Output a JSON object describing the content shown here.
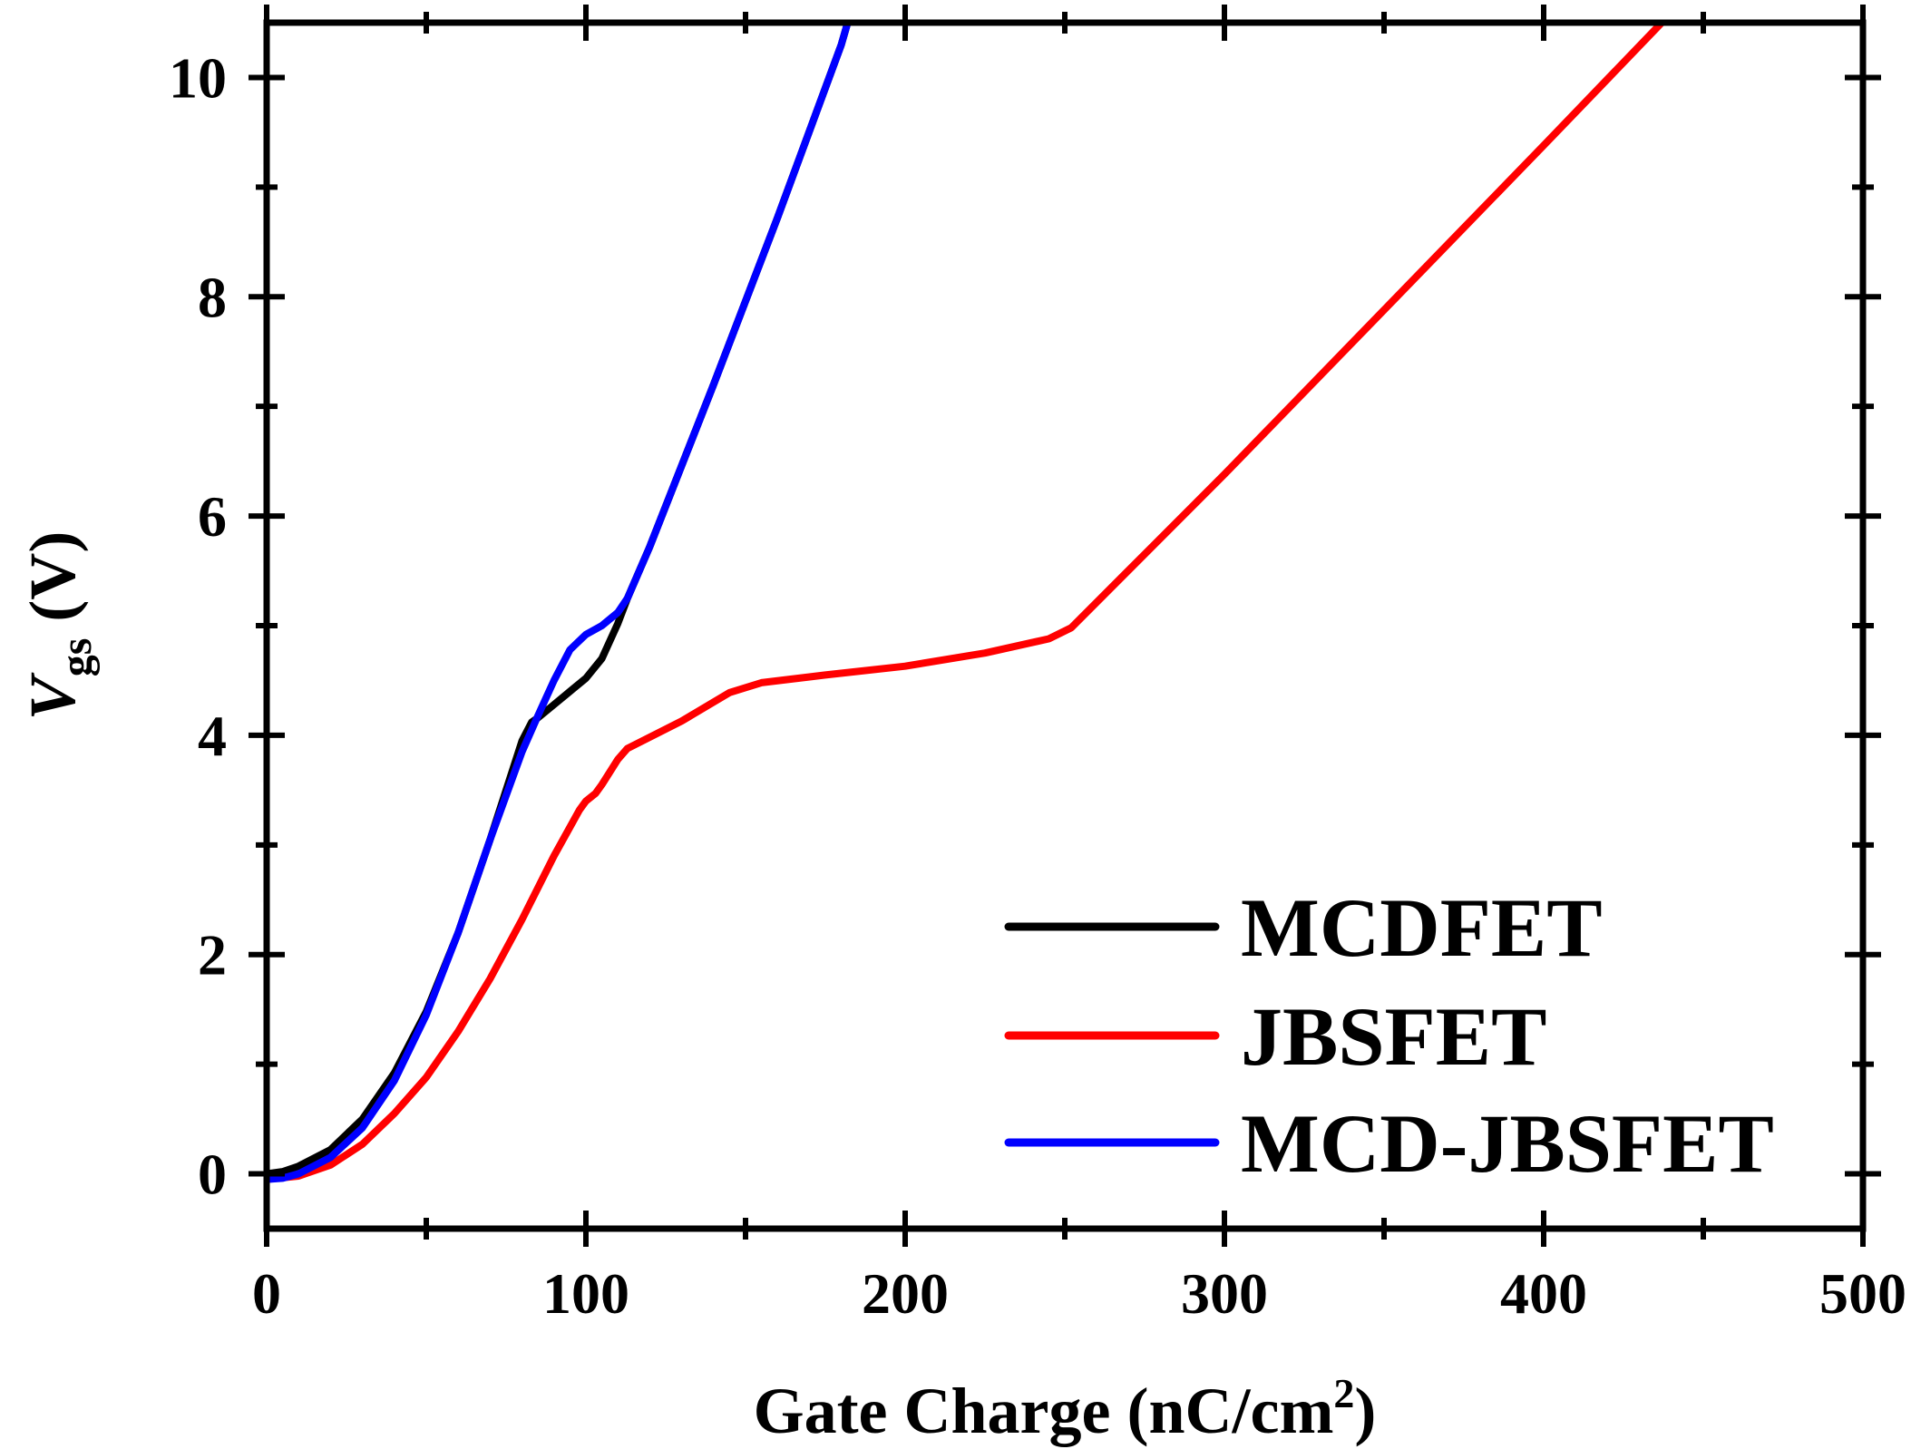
{
  "chart_data": {
    "type": "line",
    "title": "",
    "xlabel": "Gate Charge (nC/cm",
    "xlabel_sup": "2",
    "xlabel_end": ")",
    "ylabel_var": "V",
    "ylabel_sub": "gs",
    "ylabel_unit": " (V)",
    "xlim": [
      0,
      500
    ],
    "ylim": [
      -0.5,
      10.5
    ],
    "x_ticks": [
      0,
      100,
      200,
      300,
      400,
      500
    ],
    "y_ticks": [
      0,
      2,
      4,
      6,
      8,
      10
    ],
    "x_tick_labels": [
      "0",
      "100",
      "200",
      "300",
      "400",
      "500"
    ],
    "y_tick_labels": [
      "0",
      "2",
      "4",
      "6",
      "8",
      "10"
    ],
    "grid": false,
    "legend_position": "bottom-right",
    "series": [
      {
        "name": "MCDFET",
        "color": "#000000",
        "x": [
          0,
          5,
          10,
          20,
          30,
          40,
          50,
          60,
          70,
          80,
          83,
          85,
          90,
          95,
          100,
          105,
          110,
          113,
          120,
          140,
          160,
          180,
          182
        ],
        "y": [
          0,
          0.02,
          0.07,
          0.22,
          0.5,
          0.92,
          1.48,
          2.2,
          3.05,
          3.95,
          4.12,
          4.16,
          4.28,
          4.4,
          4.52,
          4.7,
          5.02,
          5.25,
          5.72,
          7.2,
          8.72,
          10.3,
          10.5
        ]
      },
      {
        "name": "JBSFET",
        "color": "#ff0000",
        "x": [
          0,
          10,
          20,
          30,
          40,
          50,
          60,
          70,
          80,
          90,
          98,
          100,
          103,
          105,
          110,
          113,
          130,
          145,
          155,
          175,
          200,
          225,
          245,
          252,
          300,
          350,
          400,
          437
        ],
        "y": [
          -0.05,
          -0.02,
          0.08,
          0.27,
          0.55,
          0.88,
          1.3,
          1.78,
          2.32,
          2.9,
          3.32,
          3.4,
          3.47,
          3.55,
          3.78,
          3.88,
          4.13,
          4.39,
          4.48,
          4.55,
          4.63,
          4.75,
          4.88,
          4.98,
          6.38,
          7.88,
          9.38,
          10.5
        ]
      },
      {
        "name": "MCD-JBSFET",
        "color": "#0000ff",
        "x": [
          0,
          5,
          10,
          20,
          30,
          40,
          50,
          60,
          70,
          80,
          85,
          90,
          95,
          100,
          105,
          110,
          113,
          120,
          140,
          160,
          180,
          182
        ],
        "y": [
          -0.05,
          -0.04,
          0.0,
          0.15,
          0.42,
          0.85,
          1.45,
          2.2,
          3.05,
          3.85,
          4.18,
          4.5,
          4.78,
          4.92,
          5.0,
          5.12,
          5.25,
          5.72,
          7.2,
          8.72,
          10.3,
          10.5
        ]
      }
    ]
  }
}
